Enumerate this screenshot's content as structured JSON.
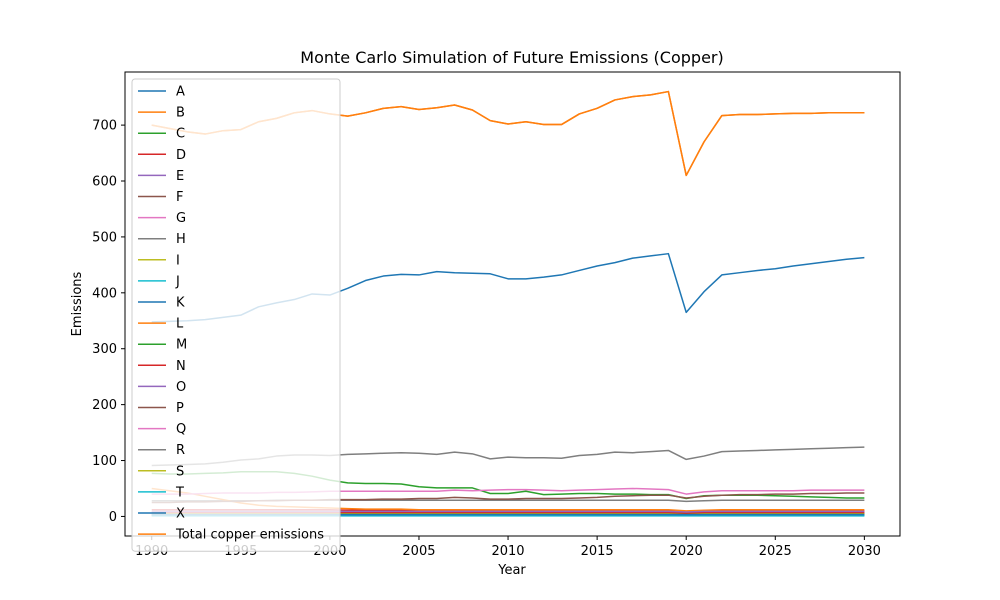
{
  "chart_data": {
    "type": "line",
    "title": "Monte Carlo Simulation of Future Emissions (Copper)",
    "xlabel": "Year",
    "ylabel": "Emissions",
    "xlim": [
      1988.5,
      2032
    ],
    "ylim": [
      -35,
      795
    ],
    "xticks": [
      1990,
      1995,
      2000,
      2005,
      2010,
      2015,
      2020,
      2025,
      2030
    ],
    "yticks": [
      0,
      100,
      200,
      300,
      400,
      500,
      600,
      700
    ],
    "grid": false,
    "legend_position": "upper-left",
    "x": [
      1990,
      1991,
      1992,
      1993,
      1994,
      1995,
      1996,
      1997,
      1998,
      1999,
      2000,
      2001,
      2002,
      2003,
      2004,
      2005,
      2006,
      2007,
      2008,
      2009,
      2010,
      2011,
      2012,
      2013,
      2014,
      2015,
      2016,
      2017,
      2018,
      2019,
      2020,
      2021,
      2022,
      2023,
      2024,
      2025,
      2026,
      2027,
      2028,
      2029,
      2030
    ],
    "series": [
      {
        "name": "A",
        "color": "#1f77b4",
        "values": [
          348,
          349,
          350,
          352,
          356,
          360,
          375,
          382,
          388,
          398,
          396,
          408,
          422,
          430,
          433,
          432,
          438,
          436,
          435,
          434,
          425,
          425,
          428,
          432,
          440,
          448,
          454,
          462,
          466,
          470,
          365,
          402,
          432,
          436,
          440,
          443,
          448,
          452,
          456,
          460,
          463
        ]
      },
      {
        "name": "B",
        "color": "#ff7f0e",
        "values": [
          700,
          694,
          688,
          684,
          690,
          692,
          706,
          712,
          722,
          726,
          720,
          716,
          722,
          730,
          733,
          728,
          731,
          736,
          727,
          708,
          702,
          706,
          701,
          701,
          720,
          730,
          745,
          751,
          754,
          760,
          610,
          670,
          717,
          719,
          719,
          720,
          721,
          721,
          722,
          722,
          722
        ]
      },
      {
        "name": "C",
        "color": "#2ca02c",
        "values": [
          77,
          76,
          76,
          77,
          78,
          80,
          80,
          80,
          77,
          72,
          65,
          60,
          59,
          59,
          58,
          53,
          51,
          51,
          51,
          41,
          41,
          45,
          39,
          40,
          41,
          41,
          40,
          40,
          39,
          39,
          32,
          37,
          38,
          38,
          38,
          37,
          36,
          35,
          34,
          33,
          33
        ]
      },
      {
        "name": "D",
        "color": "#d62728",
        "values": [
          12,
          12,
          12,
          12,
          12,
          12,
          12,
          12,
          12,
          12,
          12,
          11,
          11,
          11,
          11,
          11,
          11,
          11,
          11,
          10,
          10,
          10,
          10,
          10,
          10,
          10,
          10,
          10,
          10,
          10,
          8,
          9,
          10,
          10,
          10,
          10,
          10,
          10,
          10,
          10,
          10
        ]
      },
      {
        "name": "E",
        "color": "#9467bd",
        "values": [
          3,
          3,
          3,
          3,
          3,
          3,
          3,
          3,
          3,
          3,
          3,
          3,
          3,
          3,
          3,
          3,
          3,
          3,
          3,
          3,
          3,
          3,
          3,
          3,
          3,
          3,
          3,
          3,
          3,
          3,
          2,
          3,
          3,
          3,
          3,
          3,
          3,
          3,
          3,
          3,
          3
        ]
      },
      {
        "name": "F",
        "color": "#8c564b",
        "values": [
          6,
          6,
          6,
          6,
          6,
          6,
          6,
          6,
          6,
          6,
          6,
          6,
          6,
          6,
          6,
          6,
          6,
          6,
          6,
          6,
          6,
          6,
          6,
          6,
          6,
          6,
          6,
          6,
          6,
          6,
          5,
          5,
          6,
          6,
          6,
          6,
          6,
          6,
          6,
          6,
          6
        ]
      },
      {
        "name": "G",
        "color": "#e377c2",
        "values": [
          8,
          8,
          8,
          8,
          8,
          8,
          8,
          8,
          8,
          8,
          8,
          8,
          8,
          8,
          8,
          8,
          8,
          8,
          8,
          8,
          8,
          8,
          8,
          8,
          8,
          8,
          8,
          8,
          8,
          8,
          7,
          8,
          8,
          8,
          8,
          8,
          8,
          8,
          8,
          8,
          8
        ]
      },
      {
        "name": "H",
        "color": "#7f7f7f",
        "values": [
          28,
          28,
          28,
          28,
          28,
          28,
          28,
          29,
          29,
          29,
          29,
          29,
          29,
          29,
          29,
          29,
          29,
          29,
          29,
          29,
          29,
          29,
          29,
          29,
          29,
          29,
          29,
          29,
          29,
          29,
          27,
          28,
          29,
          29,
          29,
          29,
          29,
          29,
          29,
          29,
          29
        ]
      },
      {
        "name": "I",
        "color": "#bcbd22",
        "values": [
          2,
          2,
          2,
          2,
          2,
          2,
          2,
          2,
          2,
          2,
          2,
          2,
          2,
          2,
          2,
          2,
          2,
          2,
          2,
          2,
          2,
          2,
          2,
          2,
          2,
          2,
          2,
          2,
          2,
          2,
          2,
          2,
          2,
          2,
          2,
          2,
          2,
          2,
          2,
          2,
          2
        ]
      },
      {
        "name": "J",
        "color": "#17becf",
        "values": [
          1,
          1,
          1,
          1,
          1,
          1,
          1,
          1,
          1,
          1,
          1,
          1,
          1,
          1,
          1,
          1,
          1,
          1,
          1,
          1,
          1,
          1,
          1,
          1,
          1,
          1,
          1,
          1,
          1,
          1,
          1,
          1,
          1,
          1,
          1,
          1,
          1,
          1,
          1,
          1,
          1
        ]
      },
      {
        "name": "K",
        "color": "#1f77b4",
        "values": [
          4,
          4,
          4,
          4,
          4,
          4,
          4,
          4,
          4,
          4,
          4,
          4,
          4,
          4,
          4,
          4,
          4,
          4,
          4,
          4,
          4,
          4,
          4,
          4,
          4,
          4,
          4,
          4,
          4,
          4,
          3,
          4,
          4,
          4,
          4,
          4,
          4,
          4,
          4,
          4,
          4
        ]
      },
      {
        "name": "L",
        "color": "#ff7f0e",
        "values": [
          50,
          46,
          42,
          36,
          30,
          24,
          20,
          18,
          17,
          16,
          15,
          14,
          13,
          13,
          13,
          12,
          12,
          12,
          12,
          12,
          12,
          12,
          12,
          12,
          12,
          12,
          12,
          12,
          12,
          12,
          10,
          11,
          12,
          12,
          12,
          12,
          12,
          12,
          12,
          12,
          12
        ]
      },
      {
        "name": "M",
        "color": "#2ca02c",
        "values": [
          5,
          5,
          5,
          5,
          5,
          5,
          5,
          5,
          5,
          5,
          5,
          5,
          5,
          5,
          5,
          5,
          5,
          5,
          5,
          5,
          5,
          5,
          5,
          5,
          5,
          5,
          5,
          5,
          5,
          5,
          4,
          5,
          5,
          5,
          5,
          5,
          5,
          5,
          5,
          5,
          5
        ]
      },
      {
        "name": "N",
        "color": "#d62728",
        "values": [
          7,
          7,
          7,
          7,
          7,
          7,
          7,
          7,
          7,
          7,
          7,
          7,
          7,
          7,
          7,
          7,
          7,
          7,
          7,
          7,
          7,
          7,
          7,
          7,
          7,
          7,
          7,
          7,
          7,
          7,
          6,
          7,
          7,
          7,
          7,
          7,
          7,
          7,
          7,
          7,
          7
        ]
      },
      {
        "name": "O",
        "color": "#9467bd",
        "values": [
          9,
          9,
          9,
          9,
          9,
          9,
          9,
          9,
          9,
          9,
          9,
          9,
          9,
          9,
          9,
          9,
          9,
          9,
          9,
          9,
          9,
          9,
          9,
          9,
          9,
          9,
          9,
          9,
          9,
          9,
          8,
          9,
          9,
          9,
          9,
          9,
          9,
          9,
          9,
          9,
          9
        ]
      },
      {
        "name": "P",
        "color": "#8c564b",
        "values": [
          25,
          25,
          26,
          26,
          27,
          27,
          28,
          28,
          29,
          29,
          30,
          30,
          30,
          31,
          31,
          32,
          32,
          34,
          33,
          31,
          31,
          32,
          32,
          32,
          33,
          34,
          36,
          37,
          38,
          38,
          33,
          36,
          38,
          39,
          39,
          40,
          40,
          41,
          41,
          42,
          42
        ]
      },
      {
        "name": "Q",
        "color": "#e377c2",
        "values": [
          40,
          40,
          40,
          41,
          42,
          42,
          42,
          43,
          43,
          44,
          45,
          45,
          45,
          45,
          45,
          45,
          45,
          47,
          46,
          47,
          48,
          48,
          47,
          46,
          47,
          48,
          49,
          50,
          49,
          48,
          40,
          44,
          46,
          46,
          46,
          46,
          46,
          47,
          47,
          47,
          47
        ]
      },
      {
        "name": "R",
        "color": "#7f7f7f",
        "values": [
          91,
          92,
          93,
          94,
          97,
          101,
          103,
          108,
          110,
          110,
          109,
          111,
          112,
          113,
          114,
          113,
          111,
          115,
          112,
          103,
          106,
          105,
          105,
          104,
          109,
          111,
          115,
          114,
          116,
          118,
          102,
          108,
          116,
          117,
          118,
          119,
          120,
          121,
          122,
          123,
          124
        ]
      },
      {
        "name": "S",
        "color": "#bcbd22",
        "values": [
          4,
          4,
          4,
          4,
          4,
          4,
          4,
          4,
          4,
          4,
          4,
          4,
          4,
          4,
          4,
          4,
          4,
          4,
          4,
          4,
          4,
          4,
          4,
          4,
          4,
          4,
          4,
          4,
          4,
          4,
          3,
          4,
          4,
          4,
          4,
          4,
          4,
          4,
          4,
          4,
          4
        ]
      },
      {
        "name": "T",
        "color": "#17becf",
        "values": [
          2,
          2,
          2,
          2,
          2,
          2,
          2,
          2,
          2,
          2,
          2,
          2,
          2,
          2,
          2,
          2,
          2,
          2,
          2,
          2,
          2,
          2,
          2,
          2,
          2,
          2,
          2,
          2,
          2,
          2,
          2,
          2,
          2,
          2,
          2,
          2,
          2,
          2,
          2,
          2,
          2
        ]
      },
      {
        "name": "X",
        "color": "#1f77b4",
        "values": [
          3,
          3,
          3,
          3,
          3,
          3,
          3,
          3,
          3,
          3,
          3,
          3,
          3,
          3,
          3,
          3,
          3,
          3,
          3,
          3,
          3,
          3,
          3,
          3,
          3,
          3,
          3,
          3,
          3,
          3,
          3,
          3,
          3,
          3,
          3,
          3,
          3,
          3,
          3,
          3,
          3
        ]
      },
      {
        "name": "Total copper emissions",
        "color": "#ff7f0e",
        "values": [
          700,
          694,
          688,
          684,
          690,
          692,
          706,
          712,
          722,
          726,
          720,
          716,
          722,
          730,
          733,
          728,
          731,
          736,
          727,
          708,
          702,
          706,
          701,
          701,
          720,
          730,
          745,
          751,
          754,
          760,
          610,
          670,
          717,
          719,
          719,
          720,
          721,
          721,
          722,
          722,
          722
        ]
      }
    ]
  }
}
